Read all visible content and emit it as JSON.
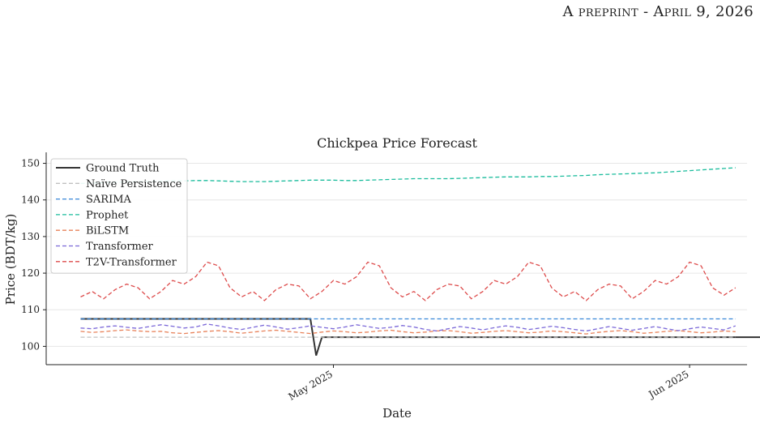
{
  "header": {
    "text": "A preprint - April 9, 2026"
  },
  "chart_data": {
    "type": "line",
    "title": "Chickpea Price Forecast",
    "xlabel": "Date",
    "ylabel": "Price (BDT/kg)",
    "x_start": "2025-04-09",
    "xlim": [
      "2025-04-06",
      "2025-06-06"
    ],
    "ylim": [
      95,
      153
    ],
    "yticks": [
      100,
      110,
      120,
      130,
      140,
      150
    ],
    "xticks": [
      {
        "date": "2025-05-01",
        "label": "May 2025"
      },
      {
        "date": "2025-06-01",
        "label": "Jun 2025"
      }
    ],
    "grid": "horizontal",
    "legend_position": "top-left",
    "series": [
      {
        "name": "Ground Truth",
        "color": "#333333",
        "dashed": false,
        "values": [
          107.5,
          107.5,
          107.5,
          107.5,
          107.5,
          107.5,
          107.5,
          107.5,
          107.5,
          107.5,
          107.5,
          107.5,
          107.5,
          107.5,
          107.5,
          107.5,
          107.5,
          107.5,
          107.5,
          107.5,
          107.5,
          107.5,
          107.5,
          107.5,
          107.5,
          107.5,
          107.5,
          107.5,
          107.5,
          107.5,
          107.5,
          107.5,
          107.5,
          107.5,
          107.5,
          107.5,
          107.5,
          107.5,
          107.5,
          107.5,
          107.5,
          97.5,
          102.5,
          102.5,
          102.5,
          102.5,
          102.5,
          102.5,
          102.5,
          102.5,
          102.5,
          102.5,
          102.5,
          102.5,
          102.5,
          102.5,
          102.5,
          102.5,
          102.5,
          102.5,
          102.5,
          102.5,
          102.5,
          102.5,
          102.5,
          102.5,
          102.5,
          102.5,
          102.5,
          102.5,
          102.5,
          102.5,
          102.5,
          102.5,
          102.5,
          102.5,
          102.5,
          102.5,
          102.5,
          102.5,
          102.5,
          102.5,
          102.5,
          102.5,
          102.5,
          102.5,
          102.5,
          102.5,
          102.5,
          102.5,
          102.5,
          102.5,
          102.5,
          102.5,
          102.5,
          102.5,
          102.5,
          102.5,
          102.5,
          102.5,
          102.5,
          102.5,
          102.5,
          102.5,
          102.5,
          102.5,
          102.5,
          102.5,
          102.5,
          102.5,
          102.5,
          102.5,
          102.5,
          102.5,
          102.5,
          102.5,
          102.5,
          102.5,
          102.5,
          102.5,
          102.5,
          102.5,
          102.5,
          102.5,
          102.5,
          102.5,
          102.5,
          102.5,
          102.5,
          102.5,
          102.5,
          102.5,
          102.5,
          102.5
        ]
      },
      {
        "name": "Naïve Persistence",
        "color": "#c0c0c0",
        "dashed": true,
        "values": [
          102.5,
          102.5,
          102.5,
          102.5,
          102.5,
          102.5,
          102.5,
          102.5,
          102.5,
          102.5,
          102.5,
          102.5,
          102.5,
          102.5,
          102.5,
          102.5,
          102.5,
          102.5,
          102.5,
          102.5,
          102.5,
          102.5,
          102.5,
          102.5,
          102.5,
          102.5,
          102.5,
          102.5,
          102.5,
          102.5,
          102.5,
          102.5,
          102.5,
          102.5,
          102.5,
          102.5,
          102.5,
          102.5,
          102.5,
          102.5,
          102.5,
          102.5,
          102.5,
          102.5,
          102.5,
          102.5,
          102.5,
          102.5,
          102.5,
          102.5,
          102.5,
          102.5,
          102.5,
          102.5,
          102.5,
          102.5,
          102.5,
          102.5
        ]
      },
      {
        "name": "SARIMA",
        "color": "#3a88d8",
        "dashed": true,
        "values": [
          107.5,
          107.5,
          107.5,
          107.5,
          107.5,
          107.5,
          107.5,
          107.5,
          107.5,
          107.5,
          107.5,
          107.5,
          107.5,
          107.5,
          107.5,
          107.5,
          107.5,
          107.5,
          107.5,
          107.5,
          107.5,
          107.5,
          107.5,
          107.5,
          107.5,
          107.5,
          107.5,
          107.5,
          107.5,
          107.5,
          107.5,
          107.5,
          107.5,
          107.5,
          107.5,
          107.5,
          107.5,
          107.5,
          107.5,
          107.5,
          107.5,
          107.5,
          107.5,
          107.5,
          107.5,
          107.5,
          107.5,
          107.5,
          107.5,
          107.5,
          107.5,
          107.5,
          107.5,
          107.5,
          107.5,
          107.5,
          107.5,
          107.5
        ]
      },
      {
        "name": "Prophet",
        "color": "#1abc9c",
        "dashed": true,
        "values": [
          144.5,
          144.6,
          144.7,
          144.8,
          144.9,
          145.0,
          145.0,
          145.1,
          145.2,
          145.2,
          145.3,
          145.3,
          145.2,
          145.1,
          145.0,
          145.0,
          145.0,
          145.1,
          145.2,
          145.3,
          145.4,
          145.4,
          145.4,
          145.3,
          145.3,
          145.4,
          145.5,
          145.6,
          145.7,
          145.8,
          145.8,
          145.8,
          145.8,
          145.9,
          146.0,
          146.1,
          146.2,
          146.3,
          146.3,
          146.3,
          146.4,
          146.4,
          146.5,
          146.6,
          146.7,
          146.9,
          147.0,
          147.1,
          147.2,
          147.3,
          147.4,
          147.6,
          147.8,
          148.0,
          148.2,
          148.4,
          148.6,
          148.8
        ]
      },
      {
        "name": "BiLSTM",
        "color": "#e8825a",
        "dashed": true,
        "values": [
          104.1,
          103.8,
          104.0,
          104.3,
          104.5,
          104.2,
          104.0,
          104.1,
          103.7,
          103.5,
          103.8,
          104.1,
          104.3,
          104.0,
          103.6,
          103.9,
          104.2,
          104.4,
          104.1,
          103.8,
          103.5,
          103.9,
          104.2,
          104.0,
          103.7,
          103.9,
          104.2,
          104.4,
          104.0,
          103.7,
          103.9,
          104.2,
          104.3,
          104.0,
          103.6,
          103.8,
          104.1,
          104.3,
          104.0,
          103.7,
          103.9,
          104.2,
          104.0,
          103.7,
          103.4,
          103.8,
          104.1,
          104.3,
          104.0,
          103.6,
          103.8,
          104.1,
          104.3,
          104.0,
          103.7,
          103.9,
          104.2,
          104.0
        ]
      },
      {
        "name": "Transformer",
        "color": "#7b68d8",
        "dashed": true,
        "values": [
          105.0,
          104.8,
          105.3,
          105.6,
          105.2,
          104.9,
          105.4,
          105.9,
          105.5,
          105.0,
          105.3,
          106.1,
          105.6,
          105.0,
          104.6,
          105.2,
          105.8,
          105.3,
          104.7,
          105.1,
          105.6,
          105.2,
          104.8,
          105.3,
          105.9,
          105.4,
          104.9,
          105.2,
          105.7,
          105.3,
          104.6,
          104.2,
          104.8,
          105.4,
          105.0,
          104.5,
          105.1,
          105.6,
          105.2,
          104.6,
          105.0,
          105.5,
          105.1,
          104.6,
          104.2,
          104.8,
          105.4,
          104.9,
          104.4,
          104.9,
          105.4,
          104.8,
          104.3,
          104.8,
          105.3,
          104.9,
          104.5,
          105.6
        ]
      },
      {
        "name": "T2V-Transformer",
        "color": "#dd4b4b",
        "dashed": true,
        "values": [
          113.5,
          115.0,
          113.0,
          115.5,
          117.0,
          116.0,
          113.0,
          115.0,
          118.0,
          117.0,
          119.0,
          123.0,
          122.0,
          116.0,
          113.5,
          115.0,
          112.5,
          115.5,
          117.0,
          116.5,
          113.0,
          115.0,
          118.0,
          117.0,
          119.0,
          123.0,
          122.0,
          116.0,
          113.5,
          115.0,
          112.5,
          115.5,
          117.0,
          116.5,
          113.0,
          115.0,
          118.0,
          117.0,
          119.0,
          123.0,
          122.0,
          116.0,
          113.5,
          115.0,
          112.5,
          115.5,
          117.0,
          116.5,
          113.0,
          115.0,
          118.0,
          117.0,
          119.0,
          123.0,
          122.0,
          116.0,
          114.0,
          116.0
        ]
      }
    ]
  }
}
